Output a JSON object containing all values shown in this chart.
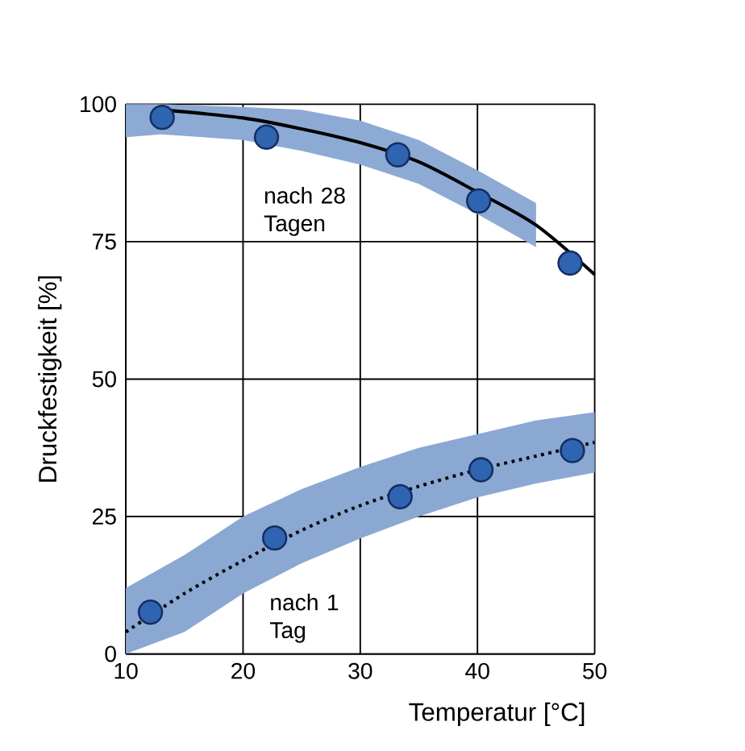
{
  "chart_data": {
    "type": "line",
    "xlabel": "Temperatur [°C]",
    "ylabel": "Druckfestigkeit [%]",
    "xlim": [
      10,
      50
    ],
    "ylim": [
      0,
      100
    ],
    "xticks": [
      10,
      20,
      30,
      40,
      50
    ],
    "yticks": [
      0,
      25,
      50,
      75,
      100
    ],
    "grid": true,
    "series": [
      {
        "line_style": "solid",
        "color": "#000000",
        "x": [
          10,
          13,
          20,
          25,
          30,
          35,
          40,
          45,
          50
        ],
        "values": [
          null,
          99,
          97.5,
          95.5,
          93,
          89.5,
          84,
          78,
          69
        ],
        "lower": [
          94,
          94.5,
          93.5,
          91.5,
          89,
          85.5,
          80,
          74,
          null
        ],
        "upper": [
          100,
          100,
          99.5,
          99,
          97,
          93.5,
          88,
          82,
          null
        ]
      },
      {
        "line_style": "dotted",
        "color": "#000000",
        "x": [
          10,
          15,
          20,
          25,
          30,
          35,
          40,
          45,
          50
        ],
        "values": [
          4,
          11,
          17,
          22.5,
          27,
          30.5,
          33.5,
          36,
          38.5
        ],
        "lower": [
          0,
          4,
          11,
          16.5,
          21,
          25,
          28.5,
          31,
          33
        ],
        "upper": [
          12,
          18,
          25,
          30,
          34,
          37.5,
          40,
          42.5,
          44
        ]
      },
      {
        "type": "scatter",
        "marker": "circle",
        "color": "#2f64b0",
        "x": [
          13.1,
          22,
          33.2,
          40.1,
          47.9
        ],
        "values": [
          97.6,
          94,
          90.8,
          82.4,
          71.1
        ]
      },
      {
        "type": "scatter",
        "marker": "circle",
        "color": "#2f64b0",
        "x": [
          12.1,
          22.7,
          33.4,
          40.3,
          48.1
        ],
        "values": [
          7.6,
          21.1,
          28.6,
          33.5,
          37
        ]
      }
    ],
    "annotations": [
      "nach 28 Tagen",
      "nach 1 Tag"
    ]
  }
}
